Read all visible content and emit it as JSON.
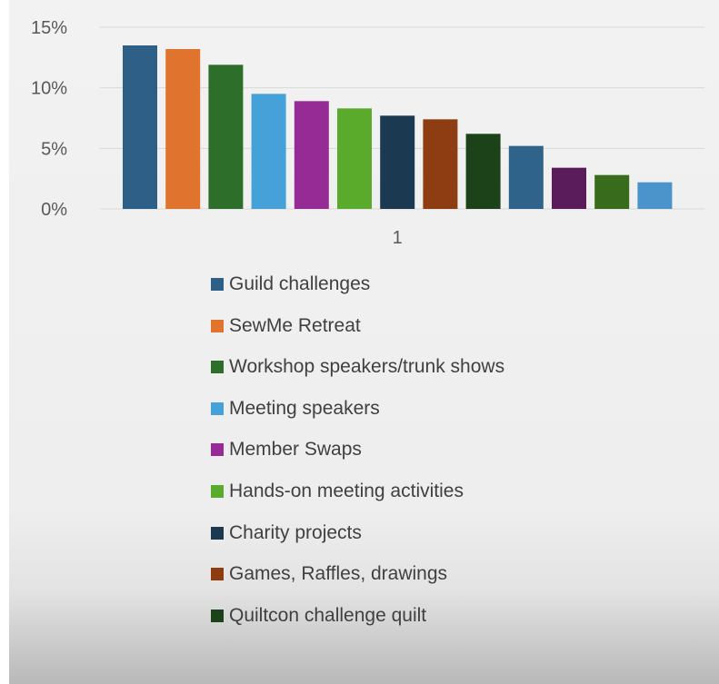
{
  "chart_data": {
    "type": "bar",
    "categories": [
      "1"
    ],
    "ylim": [
      0,
      15
    ],
    "yticks": [
      0,
      5,
      10,
      15
    ],
    "ytick_labels": [
      "0%",
      "5%",
      "10%",
      "15%"
    ],
    "grid": true,
    "legend_position": "bottom",
    "series": [
      {
        "name": "Guild challenges",
        "values": [
          13.5
        ],
        "color": "#2e5f86"
      },
      {
        "name": "SewMe Retreat",
        "values": [
          13.2
        ],
        "color": "#e0742f"
      },
      {
        "name": "Workshop speakers/trunk shows",
        "values": [
          11.9
        ],
        "color": "#2d6e2a"
      },
      {
        "name": "Meeting speakers",
        "values": [
          9.5
        ],
        "color": "#47a1d9"
      },
      {
        "name": "Member Swaps",
        "values": [
          8.9
        ],
        "color": "#962b96"
      },
      {
        "name": "Hands-on meeting activities",
        "values": [
          8.3
        ],
        "color": "#5aaa2b"
      },
      {
        "name": "Charity projects",
        "values": [
          7.7
        ],
        "color": "#1b3a52"
      },
      {
        "name": "Games, Raffles, drawings",
        "values": [
          7.4
        ],
        "color": "#8e3d12"
      },
      {
        "name": "Quiltcon challenge quilt",
        "values": [
          6.2
        ],
        "color": "#1b4219"
      },
      {
        "name": "",
        "values": [
          5.2
        ],
        "color": "#2f6389"
      },
      {
        "name": "",
        "values": [
          3.4
        ],
        "color": "#5a1c5a"
      },
      {
        "name": "",
        "values": [
          2.8
        ],
        "color": "#386b1c"
      },
      {
        "name": "",
        "values": [
          2.2
        ],
        "color": "#4a93cb"
      }
    ]
  }
}
